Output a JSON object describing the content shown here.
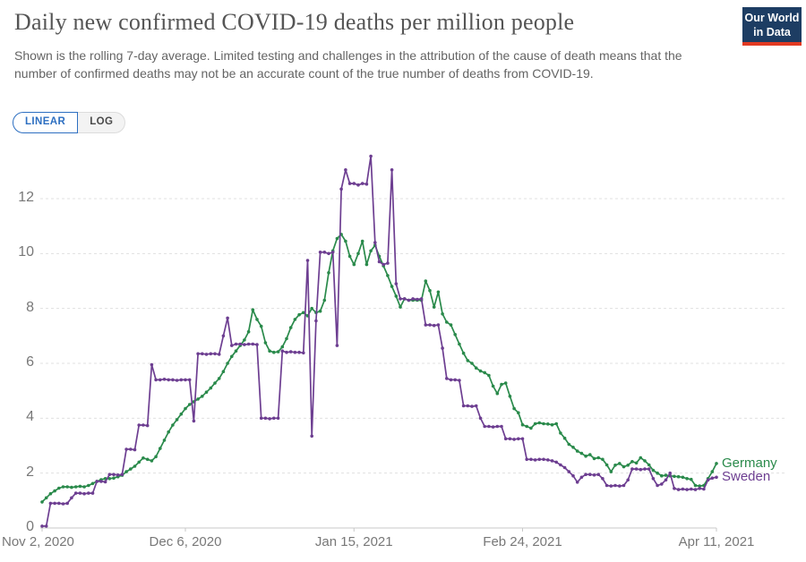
{
  "header": {
    "title": "Daily new confirmed COVID-19 deaths per million people",
    "subtitle": "Shown is the rolling 7-day average. Limited testing and challenges in the attribution of the cause of death means that the number of confirmed deaths may not be an accurate count of the true number of deaths from COVID-19.",
    "logo": {
      "line1": "Our World",
      "line2": "in Data"
    }
  },
  "controls": {
    "linear_label": "LINEAR",
    "log_label": "LOG",
    "active_scale": "LINEAR"
  },
  "colors": {
    "germany": "#2a8a4b",
    "sweden": "#6d3e91",
    "grid": "#e0e0e0",
    "axis": "#c8c8c8",
    "tick_text": "#787878",
    "logo_bg": "#1d3d63",
    "logo_red": "#e23a22",
    "accent_blue": "#2d6fc1"
  },
  "chart_data": {
    "type": "line",
    "title": "Daily new confirmed COVID-19 deaths per million people",
    "xlabel": "",
    "ylabel": "",
    "grid": true,
    "legend_position": "line-end-labels",
    "x_tick_labels": [
      "Nov 2, 2020",
      "Dec 6, 2020",
      "Jan 15, 2021",
      "Feb 24, 2021",
      "Apr 11, 2021"
    ],
    "x_tick_days": [
      0,
      34,
      74,
      114,
      160
    ],
    "x_range_days": 160,
    "y_ticks": [
      0,
      2,
      4,
      6,
      8,
      10,
      12
    ],
    "ylim": [
      0,
      13.9
    ],
    "series": [
      {
        "name": "Germany",
        "color": "#2a8a4b",
        "values": [
          0.95,
          1.1,
          1.25,
          1.35,
          1.45,
          1.5,
          1.5,
          1.48,
          1.5,
          1.52,
          1.5,
          1.55,
          1.62,
          1.7,
          1.76,
          1.8,
          1.8,
          1.82,
          1.87,
          1.92,
          2.05,
          2.15,
          2.25,
          2.4,
          2.55,
          2.5,
          2.45,
          2.6,
          2.9,
          3.2,
          3.5,
          3.75,
          3.95,
          4.15,
          4.35,
          4.5,
          4.6,
          4.7,
          4.8,
          4.95,
          5.1,
          5.28,
          5.45,
          5.7,
          6.0,
          6.25,
          6.45,
          6.65,
          6.85,
          7.15,
          7.95,
          7.6,
          7.35,
          6.75,
          6.45,
          6.4,
          6.42,
          6.6,
          6.9,
          7.3,
          7.6,
          7.77,
          7.85,
          7.73,
          8.0,
          7.85,
          7.9,
          8.3,
          9.3,
          10.1,
          10.55,
          10.7,
          10.45,
          9.9,
          9.6,
          10.0,
          10.45,
          9.6,
          10.1,
          10.3,
          9.9,
          9.55,
          9.2,
          8.8,
          8.45,
          8.05,
          8.35,
          8.3,
          8.3,
          8.3,
          8.3,
          9.0,
          8.65,
          8.05,
          8.6,
          7.8,
          7.5,
          7.4,
          7.05,
          6.7,
          6.37,
          6.1,
          6.0,
          5.83,
          5.72,
          5.66,
          5.56,
          5.17,
          4.9,
          5.23,
          5.28,
          4.8,
          4.35,
          4.2,
          3.76,
          3.7,
          3.64,
          3.8,
          3.83,
          3.8,
          3.79,
          3.76,
          3.8,
          3.46,
          3.27,
          3.05,
          2.94,
          2.8,
          2.72,
          2.62,
          2.67,
          2.53,
          2.56,
          2.5,
          2.3,
          2.05,
          2.29,
          2.35,
          2.23,
          2.29,
          2.42,
          2.37,
          2.56,
          2.45,
          2.3,
          2.1,
          2.0,
          1.9,
          1.92,
          1.9,
          1.88,
          1.87,
          1.85,
          1.8,
          1.77,
          1.55,
          1.53,
          1.55,
          1.8,
          2.05,
          2.35
        ]
      },
      {
        "name": "Sweden",
        "color": "#6d3e91",
        "values": [
          0.07,
          0.07,
          0.9,
          0.9,
          0.9,
          0.88,
          0.9,
          1.1,
          1.27,
          1.27,
          1.25,
          1.27,
          1.27,
          1.7,
          1.7,
          1.68,
          1.95,
          1.95,
          1.93,
          1.95,
          2.87,
          2.87,
          2.85,
          3.75,
          3.75,
          3.73,
          5.95,
          5.4,
          5.4,
          5.42,
          5.4,
          5.4,
          5.38,
          5.4,
          5.4,
          5.4,
          3.9,
          6.35,
          6.35,
          6.33,
          6.35,
          6.35,
          6.33,
          7.0,
          7.65,
          6.65,
          6.7,
          6.7,
          6.68,
          6.7,
          6.7,
          6.68,
          4.0,
          4.0,
          3.98,
          4.0,
          4.0,
          6.45,
          6.4,
          6.42,
          6.4,
          6.4,
          6.38,
          9.75,
          3.35,
          7.55,
          10.05,
          10.05,
          10.0,
          10.05,
          6.65,
          12.35,
          13.05,
          12.55,
          12.55,
          12.5,
          12.55,
          12.53,
          13.55,
          10.4,
          9.7,
          9.6,
          9.65,
          13.05,
          8.9,
          8.35,
          8.35,
          8.3,
          8.35,
          8.33,
          8.35,
          7.4,
          7.4,
          7.38,
          7.4,
          6.55,
          5.45,
          5.4,
          5.4,
          5.38,
          4.45,
          4.45,
          4.43,
          4.45,
          4.0,
          3.7,
          3.7,
          3.68,
          3.7,
          3.7,
          3.25,
          3.25,
          3.23,
          3.25,
          3.25,
          2.5,
          2.5,
          2.48,
          2.5,
          2.5,
          2.48,
          2.45,
          2.4,
          2.3,
          2.2,
          2.05,
          1.9,
          1.67,
          1.85,
          1.95,
          1.95,
          1.93,
          1.95,
          1.8,
          1.55,
          1.53,
          1.55,
          1.53,
          1.55,
          1.75,
          2.15,
          2.15,
          2.13,
          2.15,
          2.15,
          1.8,
          1.55,
          1.6,
          1.75,
          2.0,
          1.44,
          1.4,
          1.42,
          1.4,
          1.42,
          1.4,
          1.44,
          1.42,
          1.75,
          1.82,
          1.85
        ]
      }
    ]
  }
}
